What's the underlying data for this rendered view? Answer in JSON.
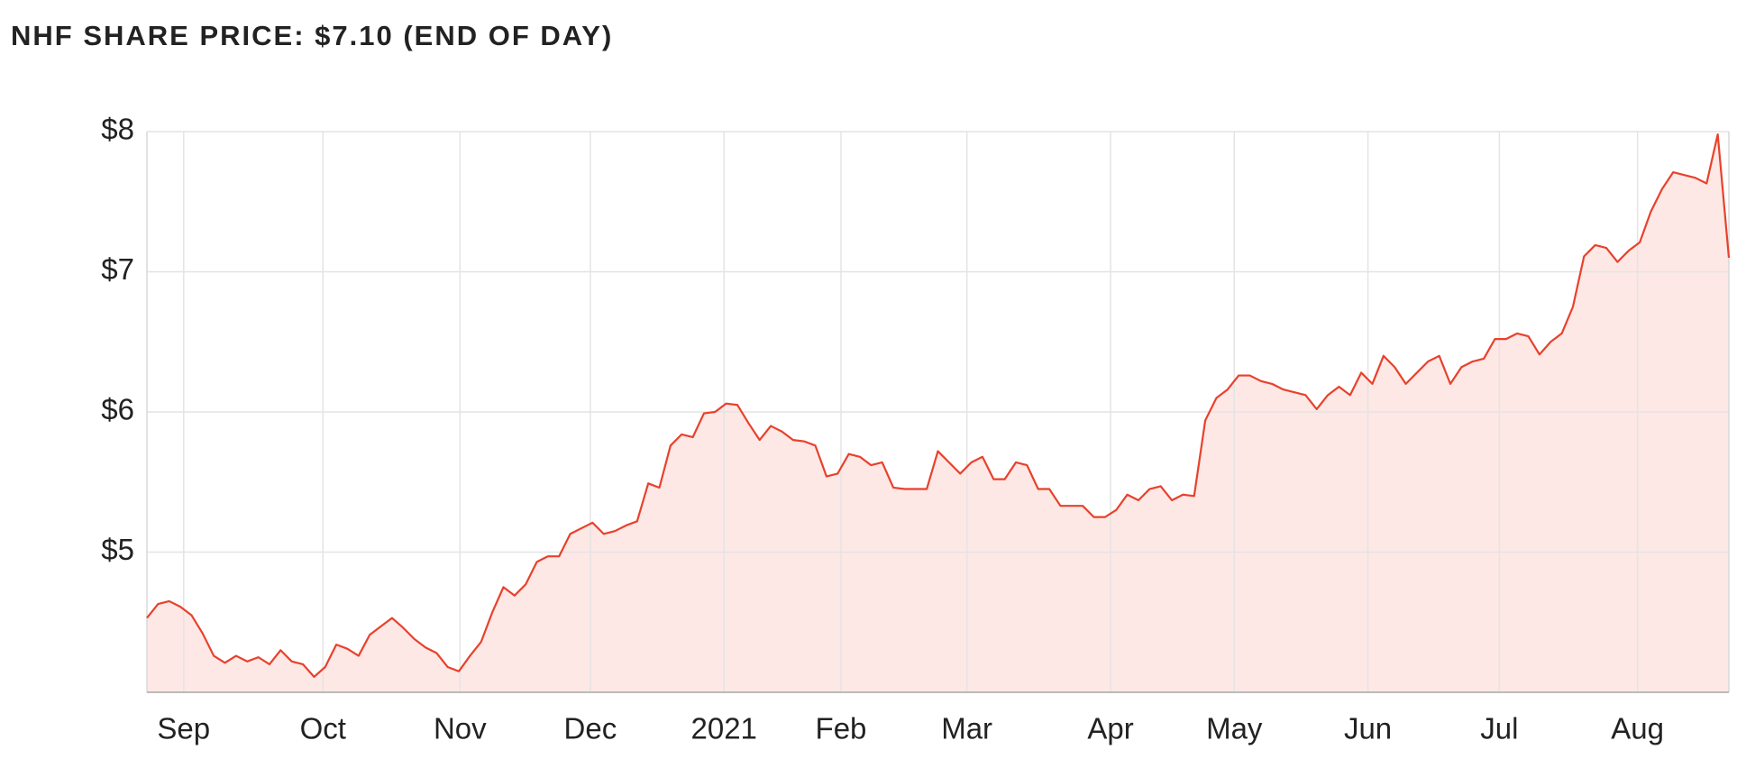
{
  "chart_data": {
    "type": "area",
    "title": "NHF SHARE PRICE: $7.10 (END OF DAY)",
    "color": "#e8412c",
    "fill": "#fde8e5",
    "grid": true,
    "values": [
      4.53,
      4.63,
      4.65,
      4.61,
      4.55,
      4.42,
      4.26,
      4.21,
      4.26,
      4.22,
      4.25,
      4.2,
      4.3,
      4.22,
      4.2,
      4.11,
      4.18,
      4.34,
      4.31,
      4.26,
      4.41,
      4.47,
      4.53,
      4.46,
      4.38,
      4.32,
      4.28,
      4.18,
      4.15,
      4.26,
      4.36,
      4.57,
      4.75,
      4.69,
      4.77,
      4.93,
      4.97,
      4.97,
      5.13,
      5.17,
      5.21,
      5.13,
      5.15,
      5.19,
      5.22,
      5.49,
      5.46,
      5.76,
      5.84,
      5.82,
      5.99,
      6.0,
      6.06,
      6.05,
      5.92,
      5.8,
      5.9,
      5.86,
      5.8,
      5.79,
      5.76,
      5.54,
      5.56,
      5.7,
      5.68,
      5.62,
      5.64,
      5.46,
      5.45,
      5.45,
      5.45,
      5.72,
      5.64,
      5.56,
      5.64,
      5.68,
      5.52,
      5.52,
      5.64,
      5.62,
      5.45,
      5.45,
      5.33,
      5.33,
      5.33,
      5.25,
      5.25,
      5.3,
      5.41,
      5.37,
      5.45,
      5.47,
      5.37,
      5.41,
      5.4,
      5.94,
      6.1,
      6.16,
      6.26,
      6.26,
      6.22,
      6.2,
      6.16,
      6.14,
      6.12,
      6.02,
      6.12,
      6.18,
      6.12,
      6.28,
      6.2,
      6.4,
      6.32,
      6.2,
      6.28,
      6.36,
      6.4,
      6.2,
      6.32,
      6.36,
      6.38,
      6.52,
      6.52,
      6.56,
      6.54,
      6.41,
      6.5,
      6.56,
      6.75,
      7.11,
      7.19,
      7.17,
      7.07,
      7.15,
      7.21,
      7.43,
      7.59,
      7.71,
      7.69,
      7.67,
      7.63,
      7.98,
      7.1
    ],
    "xlim": [
      0,
      142
    ],
    "xticks": [
      {
        "value": 3.3,
        "label": "Sep"
      },
      {
        "value": 15.8,
        "label": "Oct"
      },
      {
        "value": 28.1,
        "label": "Nov"
      },
      {
        "value": 39.8,
        "label": "Dec"
      },
      {
        "value": 51.8,
        "label": "2021"
      },
      {
        "value": 62.3,
        "label": "Feb"
      },
      {
        "value": 73.6,
        "label": "Mar"
      },
      {
        "value": 86.5,
        "label": "Apr"
      },
      {
        "value": 97.6,
        "label": "May"
      },
      {
        "value": 109.6,
        "label": "Jun"
      },
      {
        "value": 121.4,
        "label": "Jul"
      },
      {
        "value": 133.8,
        "label": "Aug"
      }
    ],
    "ylim": [
      4,
      8
    ],
    "yticks": [
      {
        "value": 5,
        "label": "$5"
      },
      {
        "value": 6,
        "label": "$6"
      },
      {
        "value": 7,
        "label": "$7"
      },
      {
        "value": 8,
        "label": "$8"
      }
    ]
  }
}
